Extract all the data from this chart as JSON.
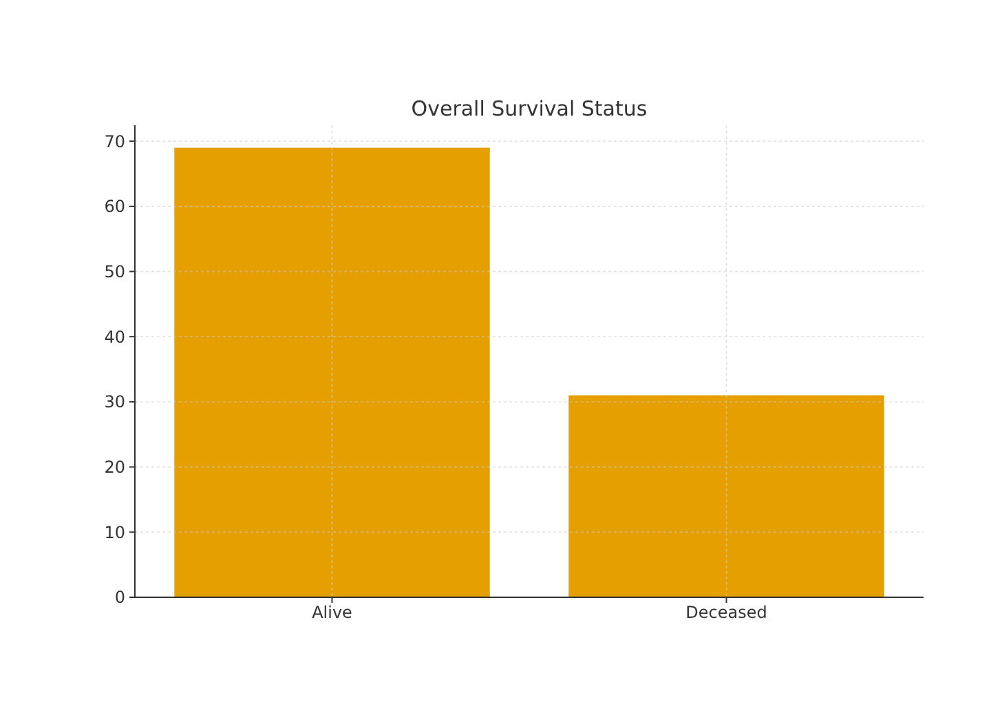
{
  "chart_data": {
    "type": "bar",
    "title": "Overall Survival Status",
    "categories": [
      "Alive",
      "Deceased"
    ],
    "values": [
      69,
      31
    ],
    "color": "#e69f00",
    "ylim": [
      0,
      72.45
    ],
    "yticks": [
      0,
      10,
      20,
      30,
      40,
      50,
      60,
      70
    ],
    "grid": true
  }
}
